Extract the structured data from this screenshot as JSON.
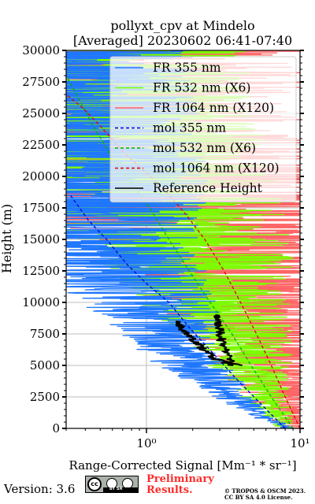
{
  "chart_data": {
    "type": "line",
    "title": "pollyxt_cpv at Mindelo",
    "subtitle": "[Averaged] 20230602 06:41-07:40",
    "xlabel": "Range-Corrected Signal [Mm⁻¹ * sr⁻¹]",
    "ylabel": "Height (m)",
    "xscale": "log",
    "xlim": [
      0.3,
      10
    ],
    "ylim": [
      0,
      30000
    ],
    "xticks": [
      1,
      10
    ],
    "xtick_labels": [
      "10⁰",
      "10¹"
    ],
    "yticks": [
      0,
      2500,
      5000,
      7500,
      10000,
      12500,
      15000,
      17500,
      20000,
      22500,
      25000,
      27500,
      30000
    ],
    "grid": true,
    "legend_position": "top-right",
    "series": [
      {
        "name": "FR 355 nm",
        "color": "#1f77ff",
        "style": "solid",
        "x": [
          8.5,
          5.5,
          3.3,
          2.0,
          1.5,
          1.2,
          0.95,
          0.75,
          0.6,
          0.5,
          0.45,
          0.4,
          0.38,
          0.36
        ],
        "y": [
          0,
          1000,
          3000,
          5000,
          7000,
          9000,
          10500,
          12000,
          13500,
          15000,
          17000,
          20000,
          25000,
          30000
        ]
      },
      {
        "name": "FR 532 nm (X6)",
        "color": "#7cfc00",
        "style": "solid",
        "x": [
          8.0,
          6.0,
          4.8,
          3.8,
          3.0,
          2.5,
          2.0,
          1.6,
          1.3,
          1.0,
          0.85,
          0.7,
          0.6
        ],
        "y": [
          0,
          2500,
          5000,
          7500,
          9500,
          11500,
          13500,
          15000,
          16500,
          18500,
          21000,
          25000,
          30000
        ]
      },
      {
        "name": "FR 1064 nm (X120)",
        "color": "#ff6464",
        "style": "solid",
        "x": [
          9.5,
          8.0,
          7.0,
          6.0,
          5.5,
          5.0,
          4.5,
          3.5,
          2.5,
          1.5,
          1.0,
          0.8
        ],
        "y": [
          0,
          3000,
          5500,
          7500,
          9000,
          11000,
          13000,
          15000,
          17000,
          19000,
          22000,
          30000
        ]
      },
      {
        "name": "mol 355 nm",
        "color": "#0000dd",
        "style": "dashed",
        "x": [
          8.0,
          5.5,
          3.8,
          2.7,
          1.9,
          1.4,
          1.0,
          0.75,
          0.55,
          0.42,
          0.32
        ],
        "y": [
          0,
          2000,
          4000,
          6000,
          8000,
          10000,
          11500,
          13000,
          15000,
          16500,
          18500
        ]
      },
      {
        "name": "mol 532 nm (X6)",
        "color": "#00b000",
        "style": "dashed",
        "x": [
          9.0,
          6.5,
          4.8,
          3.6,
          2.6,
          1.9,
          1.4,
          1.05,
          0.8,
          0.6,
          0.45,
          0.35,
          0.3
        ],
        "y": [
          0,
          2500,
          5000,
          7500,
          10000,
          12500,
          15000,
          17500,
          19500,
          21500,
          24000,
          26500,
          28000
        ]
      },
      {
        "name": "mol 1064 nm (X120)",
        "color": "#dd0000",
        "style": "dashed",
        "x": [
          10.0,
          8.0,
          6.5,
          5.2,
          4.1,
          3.2,
          2.4,
          1.8,
          1.3,
          0.95,
          0.7,
          0.5,
          0.38,
          0.3
        ],
        "y": [
          0,
          2500,
          5000,
          7500,
          10000,
          12500,
          15000,
          17000,
          19000,
          20500,
          22000,
          24000,
          25500,
          26500
        ]
      },
      {
        "name": "Reference Height",
        "color": "#000000",
        "style": "solid",
        "segments": [
          {
            "x": [
              4.5,
              3.8,
              3.3,
              2.7,
              2.2,
              1.8,
              1.55
            ],
            "y": [
              5000,
              5100,
              5200,
              5600,
              6600,
              7500,
              8500
            ]
          },
          {
            "x": [
              3.6,
              3.3,
              3.1,
              3.0,
              2.9
            ],
            "y": [
              5000,
              6200,
              7000,
              8000,
              9000
            ]
          }
        ]
      }
    ]
  },
  "footer": {
    "version": "Version: 3.6",
    "license_badge_label": "BY SA",
    "preliminary_line1": "Preliminary",
    "preliminary_line2": "Results.",
    "copyright_line1": "© TROPOS & OSCM 2023.",
    "copyright_line2": "CC BY SA 4.0 License."
  }
}
